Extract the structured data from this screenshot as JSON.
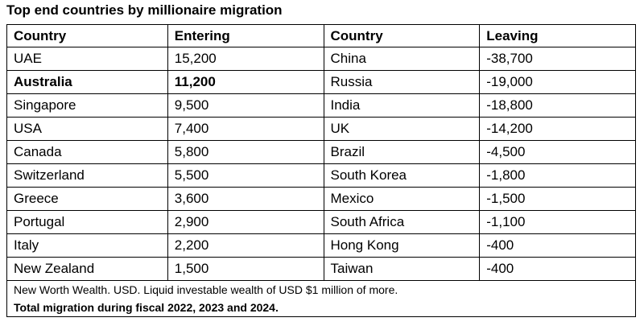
{
  "header": {
    "title": "Top end countries by millionaire migration"
  },
  "table": {
    "columns": [
      "Country",
      "Entering",
      "Country",
      "Leaving"
    ],
    "rows": [
      [
        "UAE",
        "15,200",
        "China",
        "-38,700"
      ],
      [
        "Australia",
        "11,200",
        "Russia",
        "-19,000"
      ],
      [
        "Singapore",
        "9,500",
        "India",
        "-18,800"
      ],
      [
        "USA",
        "7,400",
        "UK",
        "-14,200"
      ],
      [
        "Canada",
        "5,800",
        "Brazil",
        "-4,500"
      ],
      [
        "Switzerland",
        "5,500",
        "South Korea",
        "-1,800"
      ],
      [
        "Greece",
        "3,600",
        "Mexico",
        "-1,500"
      ],
      [
        "Portugal",
        "2,900",
        "South Africa",
        "-1,100"
      ],
      [
        "Italy",
        "2,200",
        "Hong Kong",
        "-400"
      ],
      [
        "New Zealand",
        "1,500",
        "Taiwan",
        "-400"
      ]
    ],
    "notes": [
      "New Worth Wealth.  USD.  Liquid investable wealth of USD $1 million of more.",
      "Total migration during fiscal 2022, 2023 and 2024."
    ]
  }
}
